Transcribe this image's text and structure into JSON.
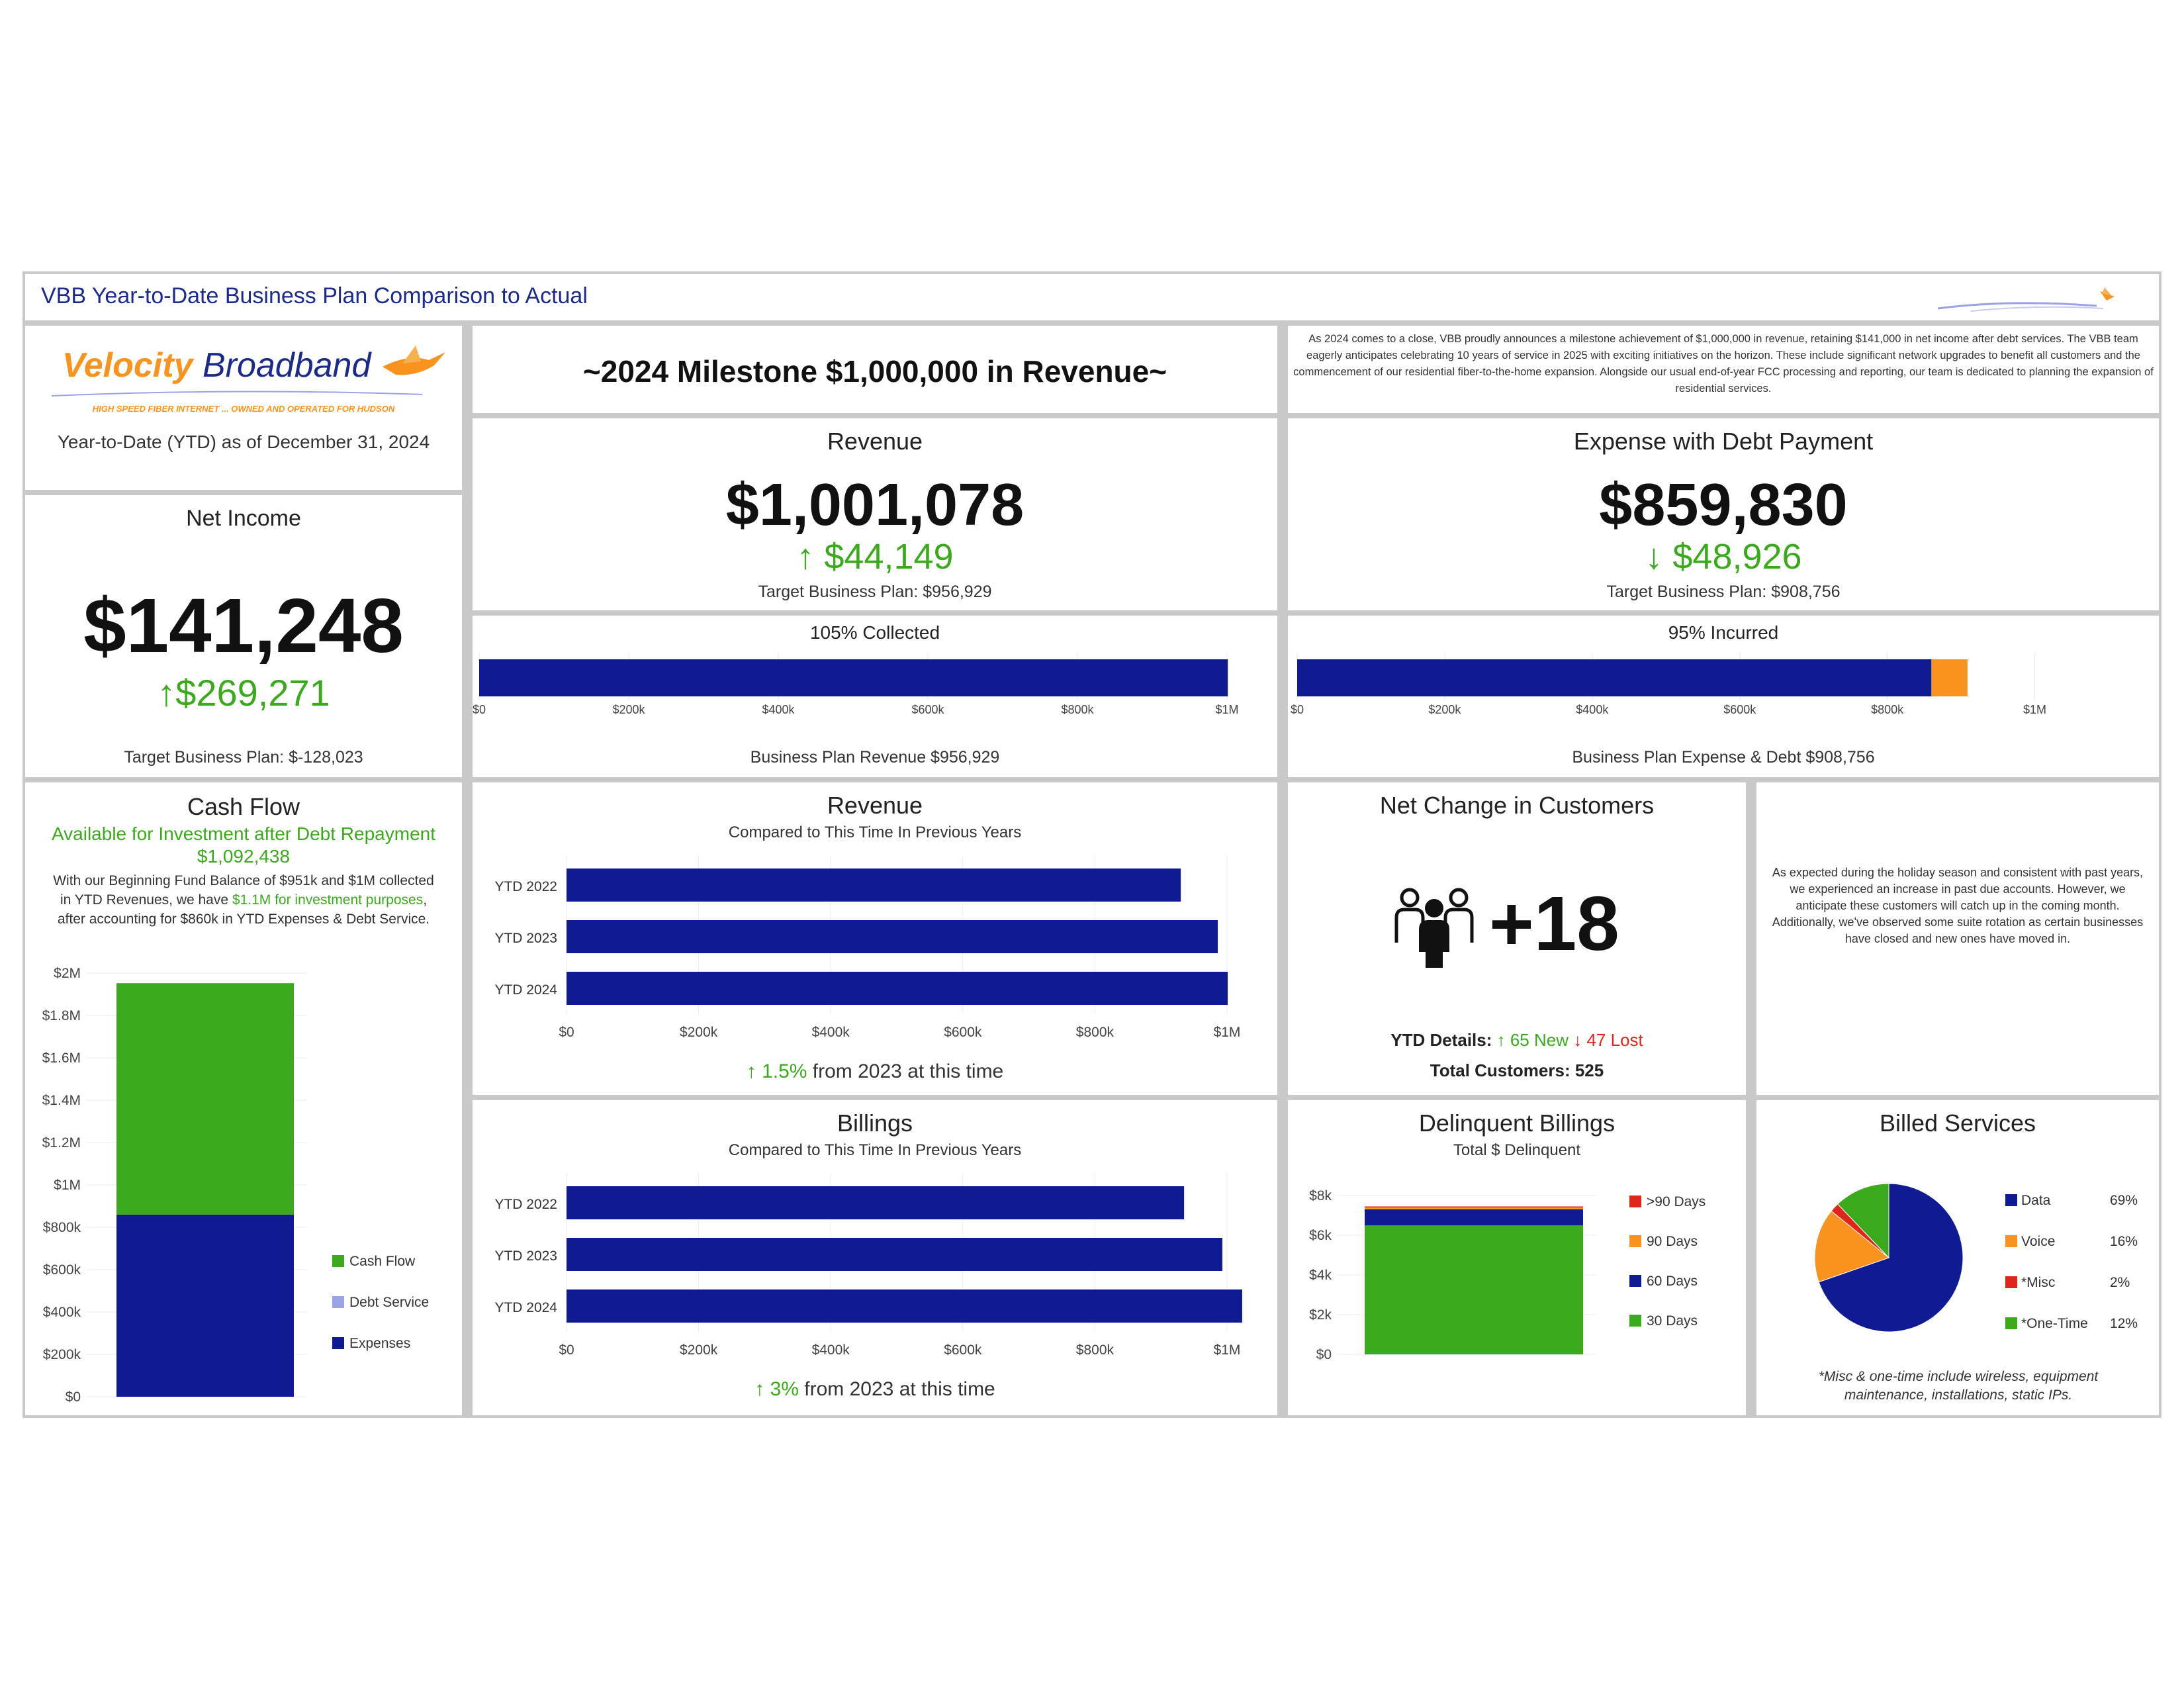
{
  "header": {
    "title": "VBB Year-to-Date Business Plan Comparison to Actual"
  },
  "logo": {
    "name_part1": "Velocity",
    "name_part2": " Broadband",
    "tagline": "HIGH SPEED FIBER INTERNET ... OWNED AND OPERATED FOR HUDSON",
    "asof": "Year-to-Date (YTD) as of December 31, 2024"
  },
  "milestone": {
    "text": "~2024 Milestone $1,000,000 in Revenue~"
  },
  "announcement": {
    "text": "As 2024 comes to a close, VBB proudly announces a milestone achievement of $1,000,000 in revenue, retaining $141,000 in net income after debt services. The VBB team eagerly anticipates celebrating 10 years of service in 2025 with exciting initiatives on the horizon. These include significant network upgrades to benefit all customers and the commencement of our residential fiber-to-the-home expansion. Alongside our usual end-of-year FCC processing and reporting, our team is dedicated to planning the expansion of residential services."
  },
  "net_income": {
    "title": "Net Income",
    "value": "$141,248",
    "change": "↑$269,271",
    "target": "Target Business Plan: $-128,023"
  },
  "revenue_kpi": {
    "title": "Revenue",
    "value": "$1,001,078",
    "change": "↑ $44,149",
    "target": "Target Business Plan: $956,929"
  },
  "expense_kpi": {
    "title": "Expense with Debt Payment",
    "value": "$859,830",
    "change": "↓ $48,926",
    "target": "Target Business Plan: $908,756"
  },
  "collected": {
    "title": "105% Collected",
    "footer": "Business Plan Revenue $956,929"
  },
  "incurred": {
    "title": "95% Incurred",
    "footer": "Business Plan Expense & Debt $908,756"
  },
  "cash_flow": {
    "title": "Cash Flow",
    "subtitle": "Available for Investment after Debt Repayment",
    "amount": "$1,092,438",
    "desc_1": "With our Beginning Fund Balance of $951k and $1M collected in YTD Revenues, we have",
    "desc_highlight": "$1.1M for investment purposes",
    "desc_2": ", after accounting for $860k in YTD Expenses & Debt Service."
  },
  "revenue_chart": {
    "title": "Revenue",
    "subtitle": "Compared to This Time In Previous Years",
    "footer_pct": "↑ 1.5%",
    "footer_rest": " from 2023 at this time"
  },
  "billings_chart": {
    "title": "Billings",
    "subtitle": "Compared to This Time In Previous Years",
    "footer_pct": "↑ 3%",
    "footer_rest": " from 2023 at this time"
  },
  "customers": {
    "title": "Net Change in Customers",
    "value": "+18",
    "details_label": "YTD Details:",
    "new_text": "↑ 65 New",
    "lost_text": "↓ 47 Lost",
    "total": "Total Customers: 525",
    "icon": "people-group-icon"
  },
  "customer_note": {
    "text": "As expected during the holiday season and consistent with past years, we experienced an increase in past due accounts. However, we anticipate these customers will catch up in the coming month. Additionally, we've observed some suite rotation as certain businesses have closed and new ones have moved in."
  },
  "delinquent": {
    "title": "Delinquent Billings",
    "subtitle": "Total $ Delinquent"
  },
  "billed_services": {
    "title": "Billed Services",
    "footnote": "*Misc & one-time include wireless, equipment maintenance, installations, static IPs."
  },
  "colors": {
    "navy": "#0f1a93",
    "green": "#3aaa1c",
    "orange": "#f7931e",
    "red": "#e0251b",
    "lavender": "#9aa3e8",
    "title_blue": "#1c2a8c"
  },
  "chart_data": [
    {
      "id": "collected",
      "type": "bar",
      "orientation": "horizontal",
      "series": [
        {
          "name": "Revenue Collected",
          "values": [
            1001078
          ]
        }
      ],
      "x_ticks": [
        "$0",
        "$200k",
        "$400k",
        "$600k",
        "$800k",
        "$1M"
      ],
      "xlim": [
        0,
        1000000
      ]
    },
    {
      "id": "incurred",
      "type": "bar",
      "orientation": "horizontal",
      "stacked": true,
      "series": [
        {
          "name": "Expense",
          "values": [
            859830
          ]
        },
        {
          "name": "Debt",
          "values": [
            48926
          ]
        }
      ],
      "x_ticks": [
        "$0",
        "$200k",
        "$400k",
        "$600k",
        "$800k",
        "$1M"
      ],
      "xlim": [
        0,
        1100000
      ]
    },
    {
      "id": "cash_flow",
      "type": "bar",
      "stacked": true,
      "y_ticks": [
        "$0",
        "$200k",
        "$400k",
        "$600k",
        "$800k",
        "$1M",
        "$1.2M",
        "$1.4M",
        "$1.6M",
        "$1.8M",
        "$2M"
      ],
      "ylim": [
        0,
        2000000
      ],
      "legend": "right",
      "series": [
        {
          "name": "Expenses",
          "value": 860000,
          "color": "#0f1a93"
        },
        {
          "name": "Debt Service",
          "value": 0,
          "color": "#9aa3e8"
        },
        {
          "name": "Cash Flow",
          "value": 1092438,
          "color": "#3aaa1c"
        }
      ]
    },
    {
      "id": "revenue_years",
      "type": "bar",
      "orientation": "horizontal",
      "categories": [
        "YTD 2022",
        "YTD 2023",
        "YTD 2024"
      ],
      "values": [
        930000,
        986000,
        1001078
      ],
      "x_ticks": [
        "$0",
        "$200k",
        "$400k",
        "$600k",
        "$800k",
        "$1M"
      ],
      "xlim": [
        0,
        1000000
      ]
    },
    {
      "id": "billings_years",
      "type": "bar",
      "orientation": "horizontal",
      "categories": [
        "YTD 2022",
        "YTD 2023",
        "YTD 2024"
      ],
      "values": [
        935000,
        993000,
        1023000
      ],
      "x_ticks": [
        "$0",
        "$200k",
        "$400k",
        "$600k",
        "$800k",
        "$1M"
      ],
      "xlim": [
        0,
        1000000
      ]
    },
    {
      "id": "delinquent",
      "type": "bar",
      "stacked": true,
      "y_ticks": [
        "$0",
        "$2k",
        "$4k",
        "$6k",
        "$8k"
      ],
      "ylim": [
        0,
        8000
      ],
      "legend": "right",
      "series": [
        {
          "name": "30 Days",
          "value": 6500,
          "color": "#3aaa1c"
        },
        {
          "name": "60 Days",
          "value": 800,
          "color": "#0f1a93"
        },
        {
          "name": "90 Days",
          "value": 100,
          "color": "#f7931e"
        },
        {
          "name": ">90 Days",
          "value": 50,
          "color": "#e0251b"
        }
      ]
    },
    {
      "id": "billed_services",
      "type": "pie",
      "legend": "right",
      "slices": [
        {
          "name": "Data",
          "pct": "69%",
          "value": 69,
          "color": "#0f1a93"
        },
        {
          "name": "Voice",
          "pct": "16%",
          "value": 16,
          "color": "#f7931e"
        },
        {
          "name": "*Misc",
          "pct": "2%",
          "value": 2,
          "color": "#e0251b"
        },
        {
          "name": "*One-Time",
          "pct": "12%",
          "value": 12,
          "color": "#3aaa1c"
        }
      ]
    }
  ]
}
